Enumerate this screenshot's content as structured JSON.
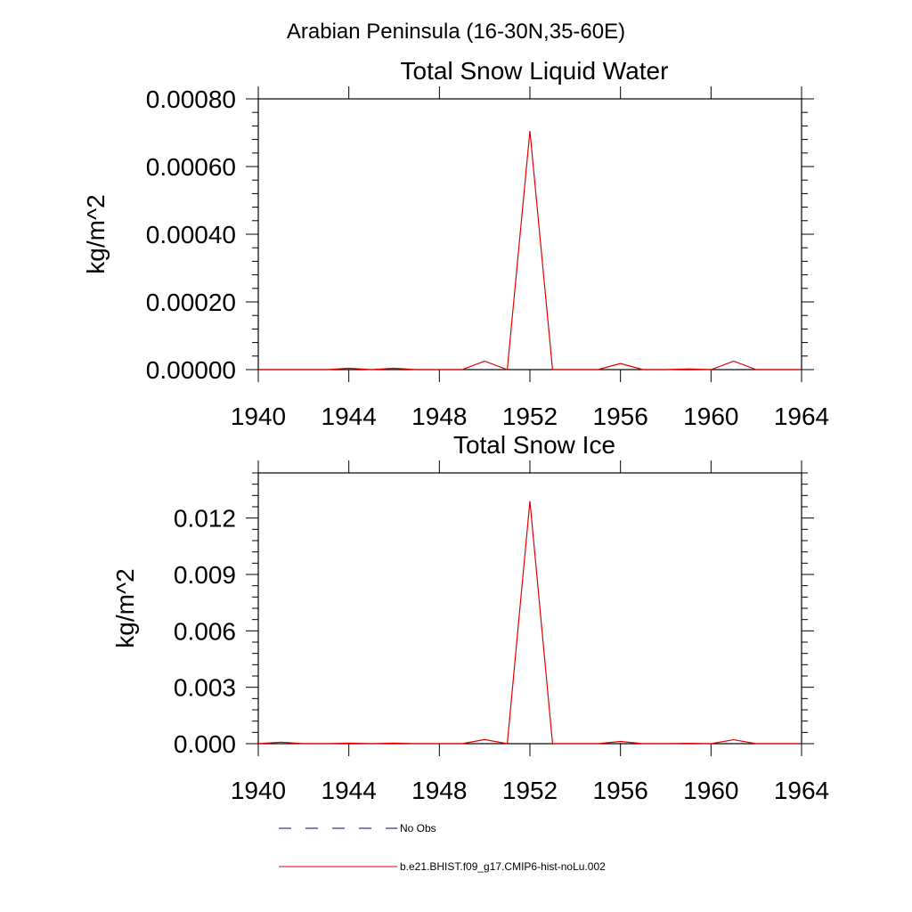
{
  "figure_title": "Arabian Peninsula (16-30N,35-60E)",
  "legend": {
    "obs_label": "No Obs",
    "model_label": "b.e21.BHIST.f09_g17.CMIP6-hist-noLu.002",
    "obs_color": "#000080",
    "model_color": "#e00000"
  },
  "chart_data": [
    {
      "type": "line",
      "title": "Total Snow Liquid Water",
      "ylabel": "kg/m^2",
      "xlabel": "",
      "xlim": [
        1940,
        1964
      ],
      "ylim": [
        0,
        0.0008
      ],
      "xticks": [
        1940,
        1944,
        1948,
        1952,
        1956,
        1960,
        1964
      ],
      "xtick_labels": [
        "1940",
        "1944",
        "1948",
        "1952",
        "1956",
        "1960",
        "1964"
      ],
      "yticks": [
        0,
        0.0002,
        0.0004,
        0.0006,
        0.0008
      ],
      "ytick_labels": [
        "0.00000",
        "0.00020",
        "0.00040",
        "0.00060",
        "0.00080"
      ],
      "series": [
        {
          "name": "b.e21.BHIST.f09_g17.CMIP6-hist-noLu.002",
          "color": "#e00000",
          "x": [
            1940,
            1941,
            1942,
            1943,
            1944,
            1945,
            1946,
            1947,
            1948,
            1949,
            1950,
            1951,
            1952,
            1953,
            1954,
            1955,
            1956,
            1957,
            1958,
            1959,
            1960,
            1961,
            1962,
            1963,
            1964
          ],
          "y": [
            0,
            0,
            0,
            0,
            4e-06,
            0,
            4e-06,
            0,
            0,
            0,
            2.5e-05,
            0,
            0.000705,
            0,
            0,
            0,
            1.8e-05,
            0,
            0,
            2e-06,
            0,
            2.5e-05,
            0,
            0,
            0
          ]
        }
      ]
    },
    {
      "type": "line",
      "title": "Total Snow Ice",
      "ylabel": "kg/m^2",
      "xlabel": "",
      "xlim": [
        1940,
        1964
      ],
      "ylim": [
        0,
        0.0144
      ],
      "xticks": [
        1940,
        1944,
        1948,
        1952,
        1956,
        1960,
        1964
      ],
      "xtick_labels": [
        "1940",
        "1944",
        "1948",
        "1952",
        "1956",
        "1960",
        "1964"
      ],
      "yticks": [
        0,
        0.003,
        0.006,
        0.009,
        0.012
      ],
      "ytick_labels": [
        "0.000",
        "0.003",
        "0.006",
        "0.009",
        "0.012"
      ],
      "series": [
        {
          "name": "b.e21.BHIST.f09_g17.CMIP6-hist-noLu.002",
          "color": "#e00000",
          "x": [
            1940,
            1941,
            1942,
            1943,
            1944,
            1945,
            1946,
            1947,
            1948,
            1949,
            1950,
            1951,
            1952,
            1953,
            1954,
            1955,
            1956,
            1957,
            1958,
            1959,
            1960,
            1961,
            1962,
            1963,
            1964
          ],
          "y": [
            0,
            8e-05,
            0,
            0,
            3e-05,
            0,
            3e-05,
            0,
            0,
            0,
            0.00022,
            0,
            0.0129,
            0,
            0,
            0,
            0.00012,
            0,
            0,
            2e-05,
            0,
            0.00021,
            0,
            0,
            0
          ]
        }
      ]
    }
  ]
}
